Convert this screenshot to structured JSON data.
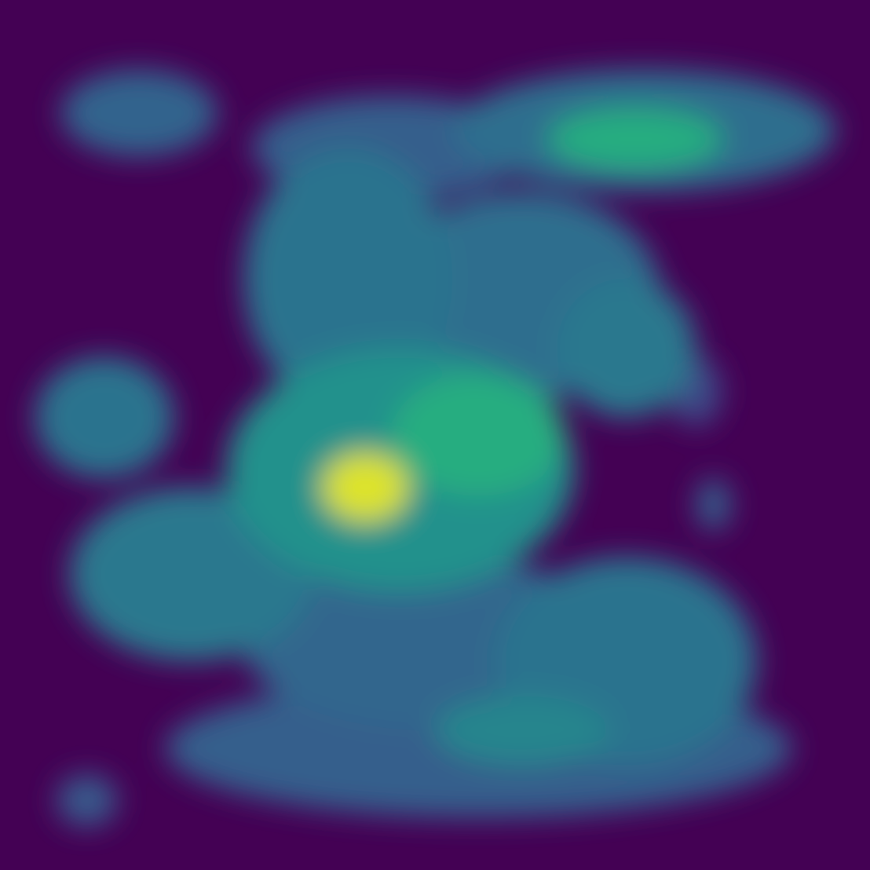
{
  "chart_data": {
    "type": "heatmap",
    "title": "",
    "xlabel": "",
    "ylabel": "",
    "colormap": "viridis",
    "colormap_stops": [
      "#440154",
      "#472d7b",
      "#3b528b",
      "#2c728e",
      "#21918c",
      "#28ae80",
      "#5ec962",
      "#addc30",
      "#fde725"
    ],
    "value_range": [
      0,
      1
    ],
    "grid": false,
    "legend": "none",
    "axes": "hidden",
    "regions": [
      {
        "name": "upper-left-lobe",
        "cx": 0.16,
        "cy": 0.13,
        "rx": 0.09,
        "ry": 0.05,
        "value": 0.32
      },
      {
        "name": "upper-band-left",
        "cx": 0.45,
        "cy": 0.17,
        "rx": 0.16,
        "ry": 0.06,
        "value": 0.3
      },
      {
        "name": "upper-band-right",
        "cx": 0.74,
        "cy": 0.15,
        "rx": 0.22,
        "ry": 0.07,
        "value": 0.36
      },
      {
        "name": "upper-band-hotspot",
        "cx": 0.73,
        "cy": 0.16,
        "rx": 0.1,
        "ry": 0.035,
        "value": 0.62
      },
      {
        "name": "center-column",
        "cx": 0.4,
        "cy": 0.32,
        "rx": 0.12,
        "ry": 0.15,
        "value": 0.38
      },
      {
        "name": "center-right-mass",
        "cx": 0.6,
        "cy": 0.34,
        "rx": 0.16,
        "ry": 0.12,
        "value": 0.36
      },
      {
        "name": "right-lobe",
        "cx": 0.72,
        "cy": 0.4,
        "rx": 0.08,
        "ry": 0.08,
        "value": 0.4
      },
      {
        "name": "left-arm",
        "cx": 0.12,
        "cy": 0.48,
        "rx": 0.08,
        "ry": 0.07,
        "value": 0.38
      },
      {
        "name": "central-halo",
        "cx": 0.46,
        "cy": 0.54,
        "rx": 0.2,
        "ry": 0.14,
        "value": 0.5
      },
      {
        "name": "central-shoulder",
        "cx": 0.55,
        "cy": 0.5,
        "rx": 0.1,
        "ry": 0.07,
        "value": 0.62
      },
      {
        "name": "central-core",
        "cx": 0.42,
        "cy": 0.56,
        "rx": 0.05,
        "ry": 0.04,
        "value": 0.95
      },
      {
        "name": "lower-left-mass",
        "cx": 0.22,
        "cy": 0.66,
        "rx": 0.14,
        "ry": 0.1,
        "value": 0.4
      },
      {
        "name": "lower-center-mass",
        "cx": 0.5,
        "cy": 0.74,
        "rx": 0.22,
        "ry": 0.1,
        "value": 0.33
      },
      {
        "name": "lower-right-mass",
        "cx": 0.72,
        "cy": 0.76,
        "rx": 0.15,
        "ry": 0.12,
        "value": 0.38
      },
      {
        "name": "bottom-band",
        "cx": 0.55,
        "cy": 0.86,
        "rx": 0.36,
        "ry": 0.08,
        "value": 0.3
      },
      {
        "name": "bottom-band-spots",
        "cx": 0.6,
        "cy": 0.84,
        "rx": 0.1,
        "ry": 0.04,
        "value": 0.45
      },
      {
        "name": "isolated-right-blob",
        "cx": 0.82,
        "cy": 0.58,
        "rx": 0.02,
        "ry": 0.03,
        "value": 0.3
      },
      {
        "name": "isolated-bottom-left-blob",
        "cx": 0.1,
        "cy": 0.92,
        "rx": 0.035,
        "ry": 0.03,
        "value": 0.28
      },
      {
        "name": "right-tendril",
        "cx": 0.8,
        "cy": 0.45,
        "rx": 0.03,
        "ry": 0.04,
        "value": 0.22
      }
    ]
  }
}
